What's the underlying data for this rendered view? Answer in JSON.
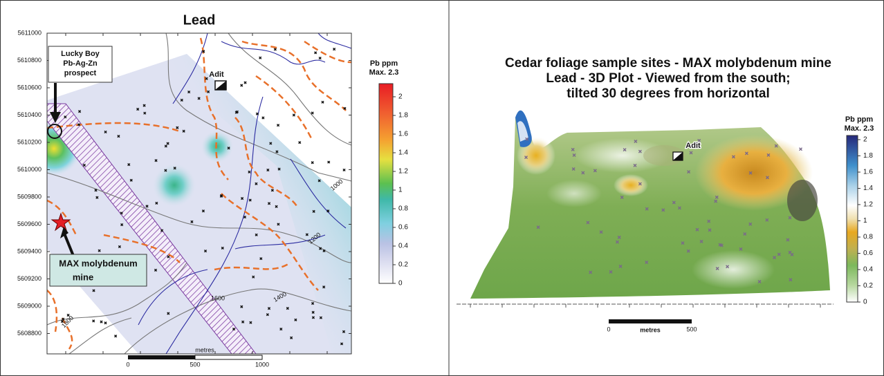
{
  "left": {
    "title": "Lead",
    "y_axis_labels": [
      "5611000",
      "5610800",
      "5610600",
      "5610400",
      "5610200",
      "5610000",
      "5609800",
      "5609600",
      "5609400",
      "5609200",
      "5609000",
      "5608800"
    ],
    "lucky_boy": [
      "Lucky Boy",
      "Pb-Ag-Zn",
      "prospect"
    ],
    "adit": "Adit",
    "max_mine": [
      "MAX molybdenum",
      "mine"
    ],
    "contour_labels": [
      "1000",
      "1200",
      "1400",
      "1600",
      "1800"
    ],
    "legend": {
      "title": [
        "Pb ppm",
        "Max. 2.3"
      ],
      "ticks": [
        "2",
        "1.8",
        "1.6",
        "1.4",
        "1.2",
        "1",
        "0.8",
        "0.6",
        "0.4",
        "0.2",
        "0"
      ]
    },
    "scale": {
      "unit": "metres",
      "ticks": [
        "0",
        "500",
        "1000"
      ]
    }
  },
  "right": {
    "title": [
      "Cedar foliage sample sites - MAX molybdenum mine",
      "Lead - 3D Plot - Viewed from the south;",
      "tilted 30 degrees from horizontal"
    ],
    "adit": "Adit",
    "legend": {
      "title": [
        "Pb ppm",
        "Max. 2.3"
      ],
      "ticks": [
        "2",
        "1.8",
        "1.6",
        "1.4",
        "1.2",
        "1",
        "0.8",
        "0.6",
        "0.4",
        "0.2",
        "0"
      ]
    },
    "scale": {
      "unit": "metres",
      "ticks": [
        "0",
        "500"
      ]
    }
  }
}
